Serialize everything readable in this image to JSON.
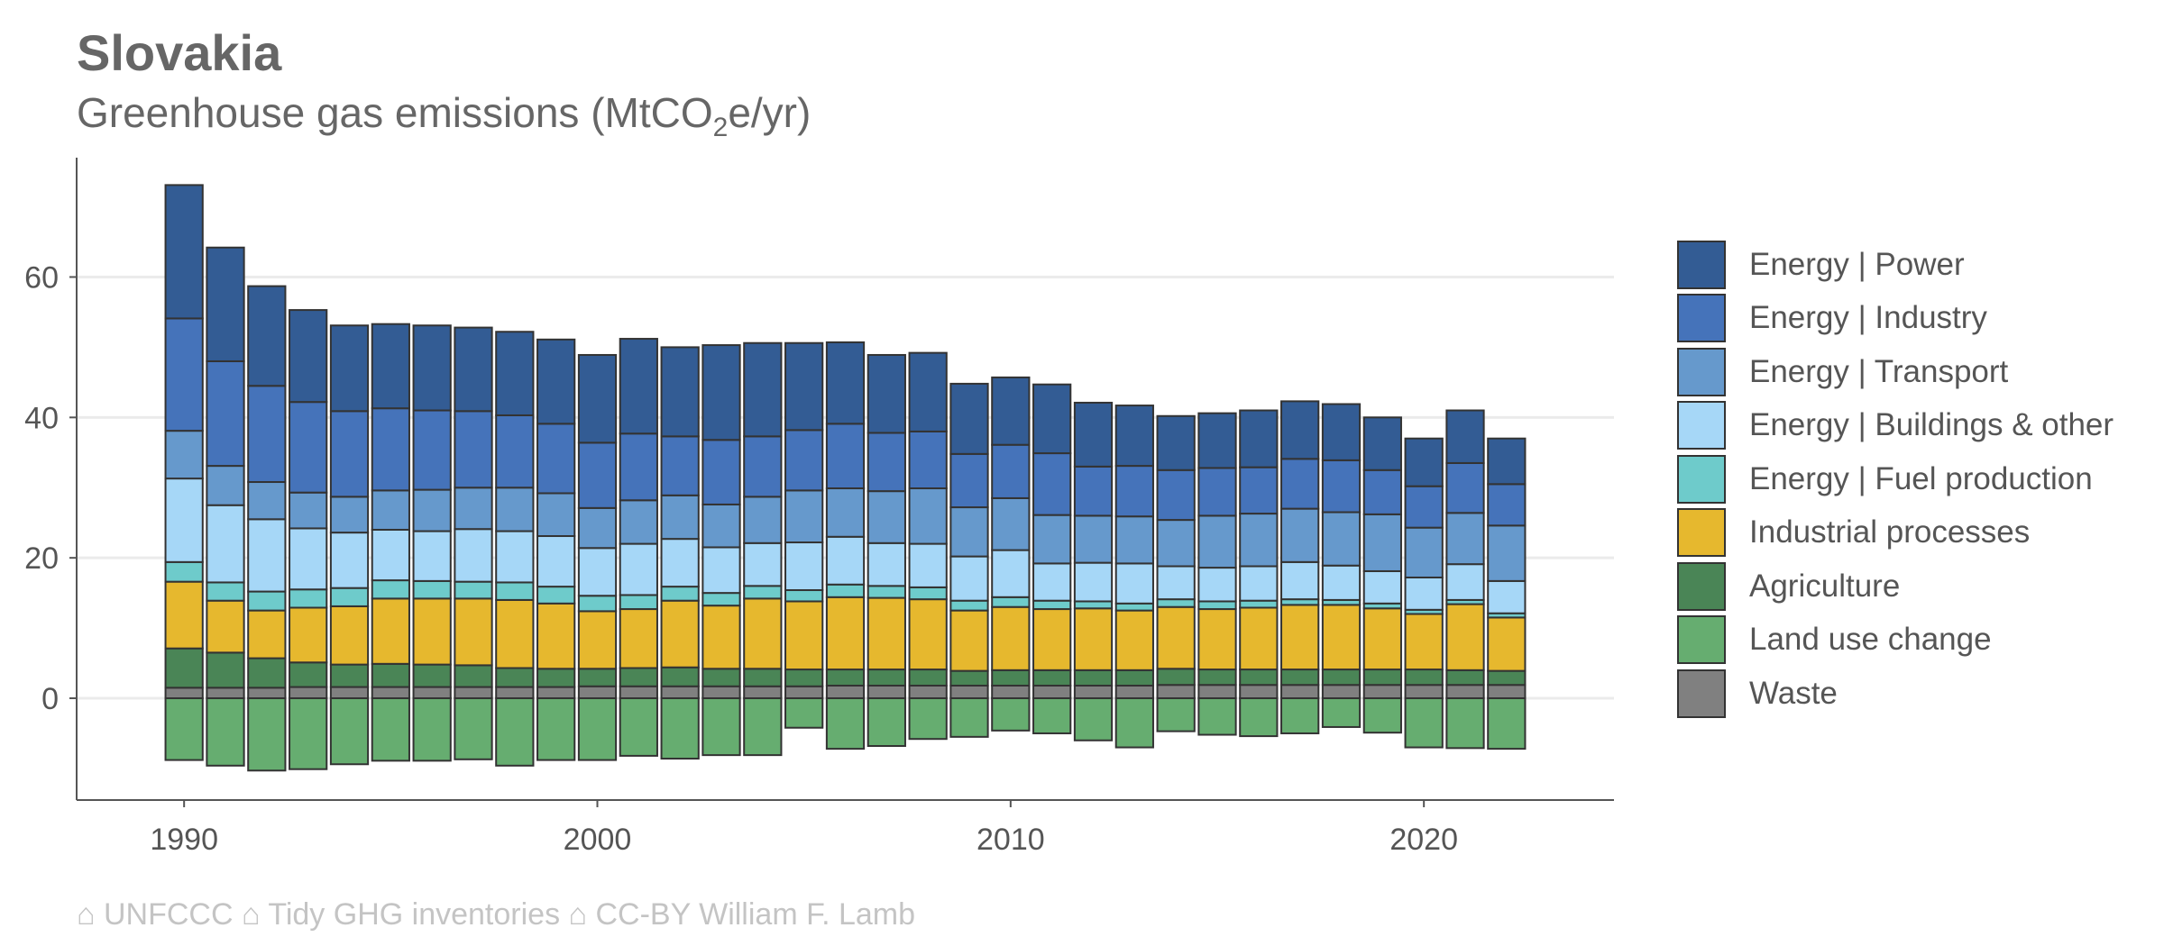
{
  "chart_data": {
    "type": "bar",
    "stacked": true,
    "title": "Slovakia",
    "subtitle_prefix": "Greenhouse gas emissions (MtCO",
    "subtitle_sub": "2",
    "subtitle_suffix": "e/yr)",
    "xlabel": "",
    "ylabel": "",
    "xlim": [
      1987.4,
      2024.6
    ],
    "ylim": [
      -14.5,
      77
    ],
    "x_ticks": [
      1990,
      2000,
      2010,
      2020
    ],
    "y_ticks": [
      0,
      20,
      40,
      60
    ],
    "grid": "horizontal",
    "legend_position": "right",
    "years": [
      1990,
      1991,
      1992,
      1993,
      1994,
      1995,
      1996,
      1997,
      1998,
      1999,
      2000,
      2001,
      2002,
      2003,
      2004,
      2005,
      2006,
      2007,
      2008,
      2009,
      2010,
      2011,
      2012,
      2013,
      2014,
      2015,
      2016,
      2017,
      2018,
      2019,
      2020,
      2021,
      2022
    ],
    "series": [
      {
        "name": "Waste",
        "color": "#808080",
        "values": [
          1.5,
          1.5,
          1.5,
          1.6,
          1.6,
          1.6,
          1.6,
          1.6,
          1.6,
          1.6,
          1.7,
          1.7,
          1.7,
          1.7,
          1.7,
          1.7,
          1.8,
          1.8,
          1.8,
          1.8,
          1.8,
          1.8,
          1.8,
          1.8,
          1.9,
          1.9,
          1.9,
          1.9,
          1.9,
          1.9,
          1.9,
          1.9,
          1.9
        ]
      },
      {
        "name": "Land use change",
        "color": "#66AD70",
        "values": [
          -8.8,
          -9.6,
          -10.3,
          -10.1,
          -9.4,
          -8.9,
          -8.9,
          -8.7,
          -9.6,
          -8.8,
          -8.8,
          -8.2,
          -8.6,
          -8.1,
          -8.1,
          -4.2,
          -7.2,
          -6.8,
          -5.8,
          -5.5,
          -4.6,
          -5.0,
          -6.0,
          -7.0,
          -4.7,
          -5.2,
          -5.4,
          -5.0,
          -4.1,
          -4.9,
          -7.0,
          -7.1,
          -7.2
        ]
      },
      {
        "name": "Agriculture",
        "color": "#4A8556",
        "values": [
          5.6,
          5.0,
          4.2,
          3.5,
          3.2,
          3.3,
          3.2,
          3.1,
          2.7,
          2.6,
          2.5,
          2.6,
          2.7,
          2.5,
          2.5,
          2.4,
          2.3,
          2.3,
          2.3,
          2.1,
          2.2,
          2.2,
          2.2,
          2.2,
          2.3,
          2.2,
          2.2,
          2.2,
          2.2,
          2.2,
          2.2,
          2.1,
          2.0
        ]
      },
      {
        "name": "Industrial processes",
        "color": "#E6B82E",
        "values": [
          9.5,
          7.4,
          6.8,
          7.8,
          8.3,
          9.3,
          9.4,
          9.5,
          9.7,
          9.3,
          8.2,
          8.4,
          9.5,
          9.0,
          10.0,
          9.7,
          10.3,
          10.2,
          10.0,
          8.6,
          9.0,
          8.7,
          8.8,
          8.5,
          8.8,
          8.6,
          8.8,
          9.2,
          9.2,
          8.7,
          7.9,
          9.4,
          7.6
        ]
      },
      {
        "name": "Energy | Fuel production",
        "color": "#6ECBCB",
        "values": [
          2.8,
          2.6,
          2.7,
          2.6,
          2.6,
          2.6,
          2.5,
          2.4,
          2.5,
          2.4,
          2.2,
          2.0,
          2.0,
          1.8,
          1.8,
          1.6,
          1.8,
          1.7,
          1.7,
          1.4,
          1.4,
          1.2,
          1.0,
          1.0,
          1.1,
          1.1,
          1.0,
          0.8,
          0.7,
          0.7,
          0.6,
          0.6,
          0.6
        ]
      },
      {
        "name": "Energy | Buildings & other",
        "color": "#A6D7F7",
        "values": [
          11.9,
          11.0,
          10.3,
          8.7,
          7.9,
          7.2,
          7.1,
          7.5,
          7.3,
          7.2,
          6.8,
          7.3,
          6.8,
          6.5,
          6.1,
          6.8,
          6.8,
          6.1,
          6.2,
          6.3,
          6.7,
          5.3,
          5.5,
          5.7,
          4.7,
          4.8,
          4.9,
          5.3,
          4.9,
          4.6,
          4.6,
          5.1,
          4.6
        ]
      },
      {
        "name": "Energy | Transport",
        "color": "#6699CC",
        "values": [
          6.8,
          5.6,
          5.3,
          5.1,
          5.1,
          5.6,
          5.9,
          5.9,
          6.2,
          6.1,
          5.7,
          6.2,
          6.2,
          6.1,
          6.6,
          7.4,
          6.9,
          7.4,
          7.9,
          7.0,
          7.4,
          6.9,
          6.7,
          6.7,
          6.6,
          7.4,
          7.5,
          7.6,
          7.6,
          8.1,
          7.1,
          7.3,
          7.9
        ]
      },
      {
        "name": "Energy | Industry",
        "color": "#4573BA",
        "values": [
          16.0,
          14.9,
          13.7,
          12.9,
          12.2,
          11.7,
          11.3,
          10.9,
          10.3,
          9.9,
          9.3,
          9.5,
          8.4,
          9.2,
          8.6,
          8.6,
          9.2,
          8.3,
          8.1,
          7.6,
          7.6,
          8.8,
          7.0,
          7.2,
          7.1,
          6.8,
          6.6,
          7.1,
          7.4,
          6.3,
          5.9,
          7.1,
          5.9
        ]
      },
      {
        "name": "Energy | Power",
        "color": "#335C94",
        "values": [
          19.0,
          16.2,
          14.2,
          13.1,
          12.2,
          12.0,
          12.1,
          11.9,
          11.9,
          12.0,
          12.5,
          13.5,
          12.7,
          13.5,
          13.3,
          12.4,
          11.6,
          11.1,
          11.2,
          10.0,
          9.6,
          9.8,
          9.1,
          8.6,
          7.7,
          7.8,
          8.1,
          8.2,
          8.0,
          7.5,
          6.8,
          7.5,
          6.5
        ]
      }
    ]
  },
  "legend_order": [
    "Energy | Power",
    "Energy | Industry",
    "Energy | Transport",
    "Energy | Buildings & other",
    "Energy | Fuel production",
    "Industrial processes",
    "Agriculture",
    "Land use change",
    "Waste"
  ],
  "caption": "⌂ UNFCCC ⌂ Tidy GHG inventories ⌂ CC-BY William F. Lamb",
  "colors": {
    "grid": "#EBEBEB",
    "axis": "#555555",
    "bar_outline": "#333333",
    "caption": "#C4C4C4"
  }
}
